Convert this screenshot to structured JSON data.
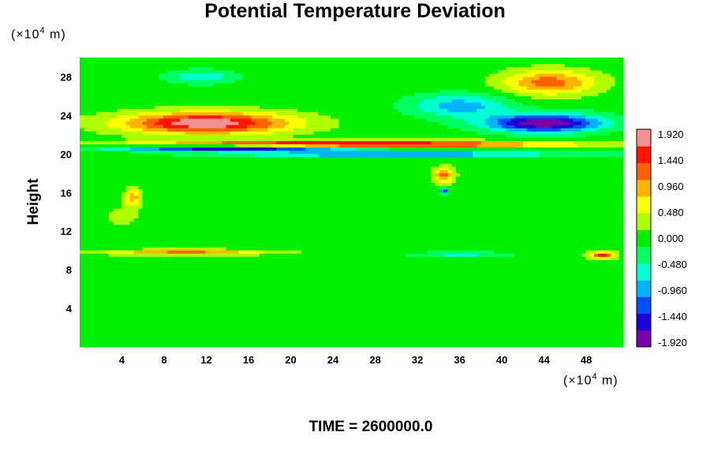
{
  "chart_data": {
    "type": "heatmap",
    "title": "Potential Temperature Deviation",
    "ylabel": "Height",
    "xlabel": "",
    "x_unit": {
      "base": "(×10",
      "exp": "4",
      "rest": " m)"
    },
    "y_unit": {
      "base": "(×10",
      "exp": "4",
      "rest": " m)"
    },
    "footer": "TIME = 2600000.0",
    "xlim": [
      0,
      51.5
    ],
    "ylim": [
      0,
      30
    ],
    "x_ticks": [
      4,
      8,
      12,
      16,
      20,
      24,
      28,
      32,
      36,
      40,
      44,
      48
    ],
    "y_ticks": [
      4,
      8,
      12,
      16,
      20,
      24,
      28
    ],
    "colorbar": {
      "range": [
        -1.92,
        1.92
      ],
      "tick_labels": [
        "1.920",
        "1.440",
        "0.960",
        "0.480",
        "0.000",
        "-0.480",
        "-0.960",
        "-1.440",
        "-1.920"
      ],
      "colors": [
        "#7a00a8",
        "#1c00d8",
        "#0050ff",
        "#00b4ff",
        "#00ffd0",
        "#00ff60",
        "#00f000",
        "#b0ff00",
        "#ffff00",
        "#ffb400",
        "#ff6000",
        "#ff1400",
        "#f09090"
      ]
    },
    "background_value": 0.0,
    "features": [
      {
        "x": 12.0,
        "y": 23.2,
        "rx": 10.0,
        "ry": 1.4,
        "value": 1.92
      },
      {
        "x": 44.5,
        "y": 27.4,
        "rx": 5.5,
        "ry": 1.6,
        "value": 1.2
      },
      {
        "x": 44.0,
        "y": 23.2,
        "rx": 7.0,
        "ry": 1.2,
        "value": -1.92
      },
      {
        "x": 36.0,
        "y": 25.0,
        "rx": 6.0,
        "ry": 1.5,
        "value": -0.9
      },
      {
        "x": 11.5,
        "y": 28.0,
        "rx": 4.0,
        "ry": 0.9,
        "value": -0.7
      },
      {
        "x": 26.0,
        "y": 21.0,
        "rx": 24.0,
        "ry": 0.45,
        "value": 1.92
      },
      {
        "x": 15.0,
        "y": 20.6,
        "rx": 15.0,
        "ry": 0.35,
        "value": -1.92
      },
      {
        "x": 30.0,
        "y": 20.0,
        "rx": 20.0,
        "ry": 0.3,
        "value": -1.5
      },
      {
        "x": 34.5,
        "y": 17.8,
        "rx": 1.2,
        "ry": 1.0,
        "value": 1.2
      },
      {
        "x": 34.5,
        "y": 16.2,
        "rx": 0.4,
        "ry": 0.4,
        "value": -1.4
      },
      {
        "x": 5.0,
        "y": 15.5,
        "rx": 0.8,
        "ry": 1.2,
        "value": 1.0
      },
      {
        "x": 10.0,
        "y": 9.8,
        "rx": 10.0,
        "ry": 0.35,
        "value": 1.1
      },
      {
        "x": 36.0,
        "y": 9.6,
        "rx": 6.0,
        "ry": 0.3,
        "value": -0.6
      },
      {
        "x": 49.5,
        "y": 9.5,
        "rx": 1.5,
        "ry": 0.5,
        "value": 1.4
      },
      {
        "x": 20.0,
        "y": 4.0,
        "rx": 8.0,
        "ry": 2.0,
        "value": 0.1
      },
      {
        "x": 4.0,
        "y": 13.5,
        "rx": 3.0,
        "ry": 2.0,
        "value": 0.2
      }
    ]
  }
}
